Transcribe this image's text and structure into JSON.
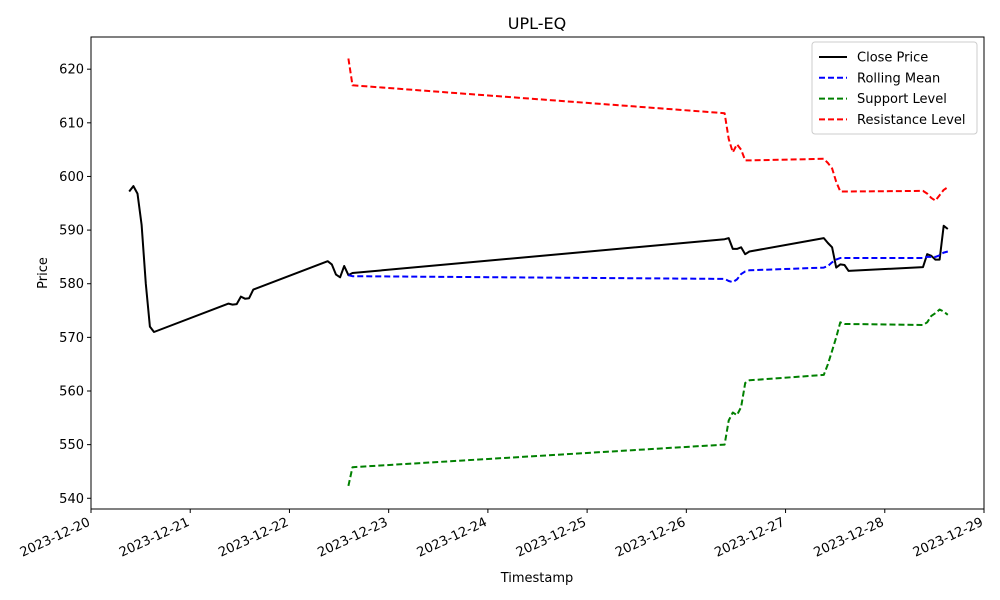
{
  "chart_data": {
    "type": "line",
    "title": "UPL-EQ",
    "xlabel": "Timestamp",
    "ylabel": "Price",
    "xlim": [
      "2023-12-20 00:00",
      "2023-12-29 00:00"
    ],
    "ylim": [
      538,
      626
    ],
    "x_ticks": [
      "2023-12-20",
      "2023-12-21",
      "2023-12-22",
      "2023-12-23",
      "2023-12-24",
      "2023-12-25",
      "2023-12-26",
      "2023-12-27",
      "2023-12-28",
      "2023-12-29"
    ],
    "y_ticks": [
      540,
      550,
      560,
      570,
      580,
      590,
      600,
      610,
      620
    ],
    "legend_position": "top-right",
    "grid": false,
    "series": [
      {
        "name": "Close Price",
        "color": "#000000",
        "style": "solid",
        "points": [
          [
            "2023-12-20 09:15",
            597.2
          ],
          [
            "2023-12-20 10:15",
            598.2
          ],
          [
            "2023-12-20 11:15",
            596.8
          ],
          [
            "2023-12-20 12:15",
            591.0
          ],
          [
            "2023-12-20 13:15",
            580.0
          ],
          [
            "2023-12-20 14:15",
            572.0
          ],
          [
            "2023-12-20 15:15",
            571.0
          ],
          [
            "2023-12-21 09:15",
            576.3
          ],
          [
            "2023-12-21 10:15",
            576.1
          ],
          [
            "2023-12-21 11:15",
            576.2
          ],
          [
            "2023-12-21 12:15",
            577.6
          ],
          [
            "2023-12-21 13:15",
            577.2
          ],
          [
            "2023-12-21 14:15",
            577.3
          ],
          [
            "2023-12-21 15:15",
            578.9
          ],
          [
            "2023-12-22 09:15",
            584.2
          ],
          [
            "2023-12-22 10:15",
            583.6
          ],
          [
            "2023-12-22 11:15",
            581.7
          ],
          [
            "2023-12-22 12:15",
            581.2
          ],
          [
            "2023-12-22 13:15",
            583.3
          ],
          [
            "2023-12-22 14:15",
            581.6
          ],
          [
            "2023-12-22 15:15",
            582.0
          ],
          [
            "2023-12-26 09:15",
            588.3
          ],
          [
            "2023-12-26 10:15",
            588.5
          ],
          [
            "2023-12-26 11:15",
            586.5
          ],
          [
            "2023-12-26 12:15",
            586.5
          ],
          [
            "2023-12-26 13:15",
            586.8
          ],
          [
            "2023-12-26 14:15",
            585.5
          ],
          [
            "2023-12-26 15:15",
            586.0
          ],
          [
            "2023-12-27 09:15",
            588.5
          ],
          [
            "2023-12-27 10:15",
            587.6
          ],
          [
            "2023-12-27 11:15",
            586.8
          ],
          [
            "2023-12-27 12:15",
            583.0
          ],
          [
            "2023-12-27 13:15",
            583.6
          ],
          [
            "2023-12-27 14:15",
            583.5
          ],
          [
            "2023-12-27 15:15",
            582.4
          ],
          [
            "2023-12-28 09:15",
            583.1
          ],
          [
            "2023-12-28 10:15",
            585.5
          ],
          [
            "2023-12-28 11:15",
            585.2
          ],
          [
            "2023-12-28 12:15",
            584.5
          ],
          [
            "2023-12-28 13:15",
            584.5
          ],
          [
            "2023-12-28 14:15",
            590.8
          ],
          [
            "2023-12-28 15:15",
            590.2
          ]
        ]
      },
      {
        "name": "Rolling Mean",
        "color": "#0000ff",
        "style": "dashed",
        "points": [
          [
            "2023-12-22 14:15",
            581.6
          ],
          [
            "2023-12-22 15:15",
            581.4
          ],
          [
            "2023-12-26 09:15",
            580.9
          ],
          [
            "2023-12-26 10:15",
            580.5
          ],
          [
            "2023-12-26 11:15",
            580.3
          ],
          [
            "2023-12-26 12:15",
            580.8
          ],
          [
            "2023-12-26 13:15",
            581.8
          ],
          [
            "2023-12-26 14:15",
            582.3
          ],
          [
            "2023-12-26 15:15",
            582.5
          ],
          [
            "2023-12-27 09:15",
            583.0
          ],
          [
            "2023-12-27 10:15",
            583.3
          ],
          [
            "2023-12-27 11:15",
            584.0
          ],
          [
            "2023-12-27 12:15",
            584.5
          ],
          [
            "2023-12-27 13:15",
            584.8
          ],
          [
            "2023-12-27 14:15",
            584.8
          ],
          [
            "2023-12-27 15:15",
            584.8
          ],
          [
            "2023-12-28 09:15",
            584.8
          ],
          [
            "2023-12-28 10:15",
            585.0
          ],
          [
            "2023-12-28 11:15",
            585.0
          ],
          [
            "2023-12-28 12:15",
            585.0
          ],
          [
            "2023-12-28 13:15",
            585.3
          ],
          [
            "2023-12-28 14:15",
            585.8
          ],
          [
            "2023-12-28 15:15",
            586.0
          ]
        ]
      },
      {
        "name": "Support Level",
        "color": "#008000",
        "style": "dashed",
        "points": [
          [
            "2023-12-22 14:15",
            542.3
          ],
          [
            "2023-12-22 15:15",
            545.8
          ],
          [
            "2023-12-26 09:15",
            550.0
          ],
          [
            "2023-12-26 10:15",
            554.5
          ],
          [
            "2023-12-26 11:15",
            556.0
          ],
          [
            "2023-12-26 12:15",
            555.5
          ],
          [
            "2023-12-26 13:15",
            557.0
          ],
          [
            "2023-12-26 14:15",
            561.5
          ],
          [
            "2023-12-26 15:15",
            562.0
          ],
          [
            "2023-12-27 09:15",
            563.0
          ],
          [
            "2023-12-27 10:15",
            565.0
          ],
          [
            "2023-12-27 11:15",
            567.5
          ],
          [
            "2023-12-27 12:15",
            570.0
          ],
          [
            "2023-12-27 13:15",
            572.8
          ],
          [
            "2023-12-27 14:15",
            572.5
          ],
          [
            "2023-12-27 15:15",
            572.5
          ],
          [
            "2023-12-28 09:15",
            572.3
          ],
          [
            "2023-12-28 10:15",
            572.8
          ],
          [
            "2023-12-28 11:15",
            574.0
          ],
          [
            "2023-12-28 12:15",
            574.5
          ],
          [
            "2023-12-28 13:15",
            575.2
          ],
          [
            "2023-12-28 14:15",
            574.8
          ],
          [
            "2023-12-28 15:15",
            574.2
          ]
        ]
      },
      {
        "name": "Resistance Level",
        "color": "#ff0000",
        "style": "dashed",
        "points": [
          [
            "2023-12-22 14:15",
            622.0
          ],
          [
            "2023-12-22 15:15",
            617.0
          ],
          [
            "2023-12-26 09:15",
            611.8
          ],
          [
            "2023-12-26 10:15",
            607.0
          ],
          [
            "2023-12-26 11:15",
            604.5
          ],
          [
            "2023-12-26 12:15",
            606.0
          ],
          [
            "2023-12-26 13:15",
            605.0
          ],
          [
            "2023-12-26 14:15",
            603.0
          ],
          [
            "2023-12-26 15:15",
            603.0
          ],
          [
            "2023-12-27 09:15",
            603.3
          ],
          [
            "2023-12-27 10:15",
            602.5
          ],
          [
            "2023-12-27 11:15",
            601.5
          ],
          [
            "2023-12-27 12:15",
            599.0
          ],
          [
            "2023-12-27 13:15",
            597.2
          ],
          [
            "2023-12-27 14:15",
            597.2
          ],
          [
            "2023-12-27 15:15",
            597.2
          ],
          [
            "2023-12-28 09:15",
            597.3
          ],
          [
            "2023-12-28 10:15",
            596.8
          ],
          [
            "2023-12-28 11:15",
            596.0
          ],
          [
            "2023-12-28 12:15",
            595.5
          ],
          [
            "2023-12-28 13:15",
            596.5
          ],
          [
            "2023-12-28 14:15",
            597.5
          ],
          [
            "2023-12-28 15:15",
            598.0
          ]
        ]
      }
    ]
  }
}
